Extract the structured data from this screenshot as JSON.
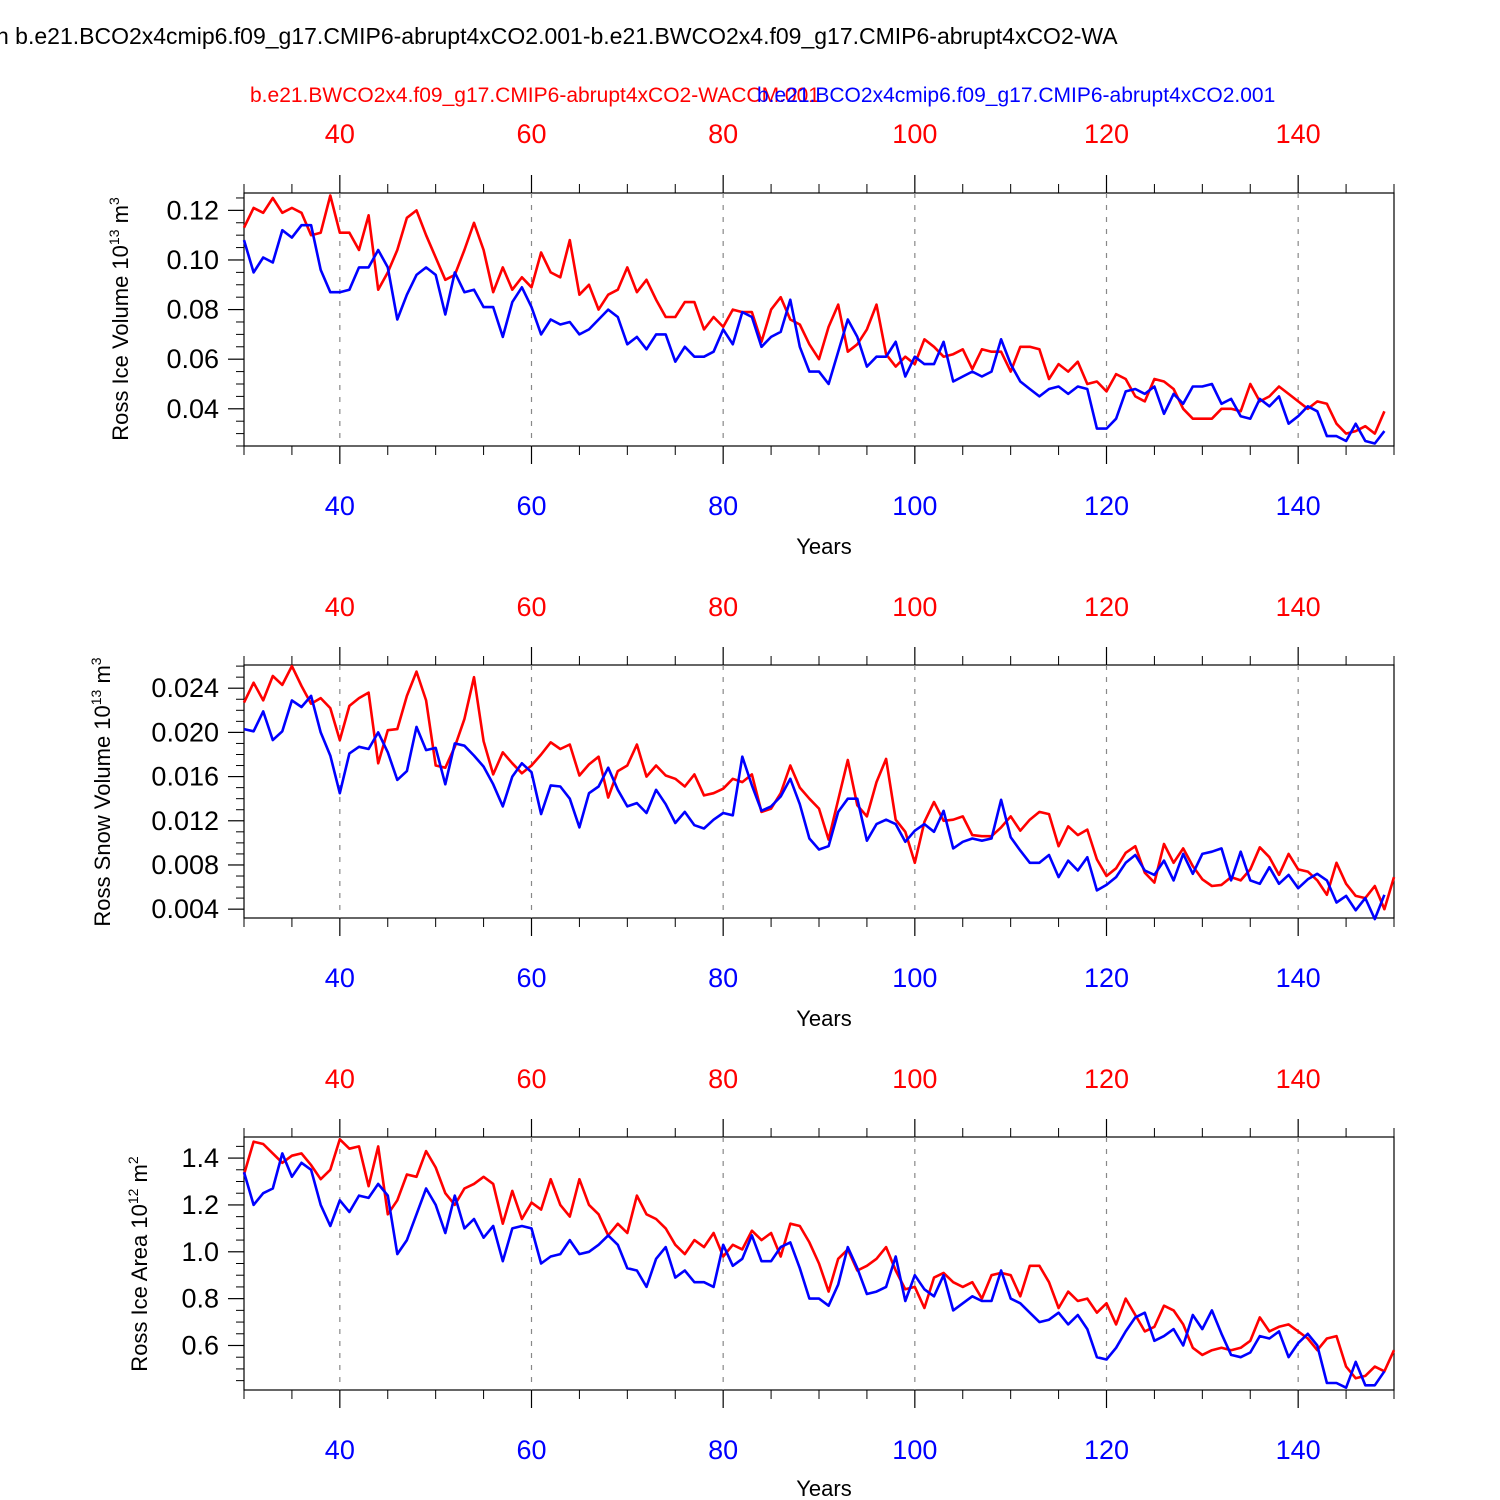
{
  "figure": {
    "title": "n b.e21.BCO2x4cmip6.f09_g17.CMIP6-abrupt4xCO2.001-b.e21.BWCO2x4.f09_g17.CMIP6-abrupt4xCO2-WA",
    "series_labels": {
      "red": "b.e21.BWCO2x4.f09_g17.CMIP6-abrupt4xCO2-WACCM.001",
      "blue": "b.e21.BCO2x4cmip6.f09_g17.CMIP6-abrupt4xCO2.001"
    },
    "colors": {
      "red": "#ff0000",
      "blue": "#0000ff",
      "grid": "#888888"
    }
  },
  "chart_data": [
    {
      "type": "line",
      "title": "",
      "ylabel_main": "Ross Ice Volume 10",
      "ylabel_exp": "13",
      "ylabel_unit": " m",
      "ylabel_unit_exp": "3",
      "xlabel": "Years",
      "xlim": [
        30,
        150
      ],
      "ylim": [
        0.025,
        0.127
      ],
      "xticks": [
        40,
        60,
        80,
        100,
        120,
        140
      ],
      "xtick_labels": [
        "40",
        "60",
        "80",
        "100",
        "120",
        "140"
      ],
      "yticks": [
        0.04,
        0.06,
        0.08,
        0.1,
        0.12
      ],
      "ytick_labels": [
        "0.04",
        "0.06",
        "0.08",
        "0.10",
        "0.12"
      ],
      "x_start": 30,
      "series": [
        {
          "name": "b.e21.BWCO2x4.f09_g17.CMIP6-abrupt4xCO2-WACCM.001",
          "color": "red",
          "values": [
            0.113,
            0.121,
            0.119,
            0.125,
            0.119,
            0.121,
            0.119,
            0.11,
            0.111,
            0.126,
            0.111,
            0.111,
            0.104,
            0.118,
            0.088,
            0.095,
            0.104,
            0.117,
            0.12,
            0.11,
            0.101,
            0.092,
            0.094,
            0.104,
            0.115,
            0.104,
            0.087,
            0.097,
            0.088,
            0.093,
            0.089,
            0.103,
            0.095,
            0.093,
            0.108,
            0.086,
            0.09,
            0.08,
            0.086,
            0.088,
            0.097,
            0.087,
            0.092,
            0.084,
            0.077,
            0.077,
            0.083,
            0.083,
            0.072,
            0.077,
            0.073,
            0.08,
            0.079,
            0.079,
            0.067,
            0.08,
            0.085,
            0.076,
            0.074,
            0.066,
            0.06,
            0.073,
            0.082,
            0.063,
            0.066,
            0.072,
            0.082,
            0.062,
            0.057,
            0.061,
            0.058,
            0.068,
            0.065,
            0.061,
            0.062,
            0.064,
            0.056,
            0.064,
            0.063,
            0.063,
            0.055,
            0.065,
            0.065,
            0.064,
            0.052,
            0.058,
            0.055,
            0.059,
            0.05,
            0.051,
            0.047,
            0.054,
            0.052,
            0.045,
            0.043,
            0.052,
            0.051,
            0.048,
            0.04,
            0.036,
            0.036,
            0.036,
            0.04,
            0.04,
            0.039,
            0.05,
            0.043,
            0.045,
            0.049,
            0.046,
            0.043,
            0.04,
            0.043,
            0.042,
            0.034,
            0.03,
            0.031,
            0.033,
            0.03,
            0.039
          ]
        },
        {
          "name": "b.e21.BCO2x4cmip6.f09_g17.CMIP6-abrupt4xCO2.001",
          "color": "blue",
          "values": [
            0.108,
            0.095,
            0.101,
            0.099,
            0.112,
            0.109,
            0.114,
            0.114,
            0.096,
            0.087,
            0.087,
            0.088,
            0.097,
            0.097,
            0.104,
            0.097,
            0.076,
            0.086,
            0.094,
            0.097,
            0.094,
            0.078,
            0.095,
            0.087,
            0.088,
            0.081,
            0.081,
            0.069,
            0.083,
            0.089,
            0.081,
            0.07,
            0.076,
            0.074,
            0.075,
            0.07,
            0.072,
            0.076,
            0.08,
            0.077,
            0.066,
            0.069,
            0.064,
            0.07,
            0.07,
            0.059,
            0.065,
            0.061,
            0.061,
            0.063,
            0.072,
            0.066,
            0.079,
            0.077,
            0.065,
            0.069,
            0.071,
            0.084,
            0.065,
            0.055,
            0.055,
            0.05,
            0.063,
            0.076,
            0.069,
            0.057,
            0.061,
            0.061,
            0.067,
            0.053,
            0.061,
            0.058,
            0.058,
            0.067,
            0.051,
            0.053,
            0.055,
            0.053,
            0.055,
            0.068,
            0.058,
            0.051,
            0.048,
            0.045,
            0.048,
            0.049,
            0.046,
            0.049,
            0.048,
            0.032,
            0.032,
            0.036,
            0.047,
            0.048,
            0.046,
            0.049,
            0.038,
            0.046,
            0.042,
            0.049,
            0.049,
            0.05,
            0.042,
            0.044,
            0.037,
            0.036,
            0.044,
            0.041,
            0.045,
            0.034,
            0.037,
            0.041,
            0.039,
            0.029,
            0.029,
            0.027,
            0.034,
            0.027,
            0.026,
            0.031
          ]
        }
      ]
    },
    {
      "type": "line",
      "title": "",
      "ylabel_main": "Ross Snow Volume 10",
      "ylabel_exp": "13",
      "ylabel_unit": " m",
      "ylabel_unit_exp": "3",
      "xlabel": "Years",
      "xlim": [
        30,
        150
      ],
      "ylim": [
        0.0032,
        0.0261
      ],
      "xticks": [
        40,
        60,
        80,
        100,
        120,
        140
      ],
      "xtick_labels": [
        "40",
        "60",
        "80",
        "100",
        "120",
        "140"
      ],
      "yticks": [
        0.004,
        0.008,
        0.012,
        0.016,
        0.02,
        0.024
      ],
      "ytick_labels": [
        "0.004",
        "0.008",
        "0.012",
        "0.016",
        "0.020",
        "0.024"
      ],
      "x_start": 30,
      "series": [
        {
          "name": "b.e21.BWCO2x4.f09_g17.CMIP6-abrupt4xCO2-WACCM.001",
          "color": "red",
          "values": [
            0.0227,
            0.0245,
            0.0229,
            0.0251,
            0.0243,
            0.026,
            0.0242,
            0.0226,
            0.0231,
            0.0222,
            0.0193,
            0.0224,
            0.0231,
            0.0236,
            0.0172,
            0.0202,
            0.0203,
            0.0233,
            0.0255,
            0.0229,
            0.017,
            0.0168,
            0.0187,
            0.0212,
            0.025,
            0.0192,
            0.0162,
            0.0182,
            0.0172,
            0.0163,
            0.017,
            0.018,
            0.0191,
            0.0185,
            0.0189,
            0.0161,
            0.0171,
            0.0178,
            0.0141,
            0.0165,
            0.017,
            0.0189,
            0.016,
            0.017,
            0.0161,
            0.0158,
            0.0151,
            0.0162,
            0.0143,
            0.0145,
            0.0149,
            0.0158,
            0.0155,
            0.0162,
            0.0128,
            0.0131,
            0.0145,
            0.017,
            0.015,
            0.014,
            0.0131,
            0.0103,
            0.0139,
            0.0175,
            0.0134,
            0.0124,
            0.0155,
            0.0176,
            0.0121,
            0.011,
            0.0082,
            0.0119,
            0.0137,
            0.012,
            0.0121,
            0.0124,
            0.0107,
            0.0106,
            0.0106,
            0.0114,
            0.0124,
            0.0111,
            0.0121,
            0.0128,
            0.0126,
            0.0097,
            0.0115,
            0.0107,
            0.0112,
            0.0085,
            0.007,
            0.0077,
            0.0091,
            0.0097,
            0.0073,
            0.0064,
            0.0099,
            0.0082,
            0.0095,
            0.0079,
            0.0067,
            0.0061,
            0.0062,
            0.0069,
            0.0066,
            0.0076,
            0.0096,
            0.0087,
            0.0071,
            0.009,
            0.0076,
            0.0074,
            0.0066,
            0.0053,
            0.0082,
            0.0063,
            0.0052,
            0.005,
            0.0061,
            0.004,
            0.0069
          ]
        },
        {
          "name": "b.e21.BCO2x4cmip6.f09_g17.CMIP6-abrupt4xCO2.001",
          "color": "blue",
          "values": [
            0.0203,
            0.0201,
            0.0219,
            0.0193,
            0.0201,
            0.0229,
            0.0223,
            0.0233,
            0.02,
            0.0179,
            0.0145,
            0.0181,
            0.0187,
            0.0185,
            0.02,
            0.0182,
            0.0157,
            0.0165,
            0.0205,
            0.0184,
            0.0186,
            0.0153,
            0.019,
            0.0188,
            0.0179,
            0.0169,
            0.0153,
            0.0133,
            0.016,
            0.0172,
            0.0164,
            0.0126,
            0.0152,
            0.0151,
            0.014,
            0.0114,
            0.0145,
            0.0151,
            0.0168,
            0.0148,
            0.0133,
            0.0136,
            0.0127,
            0.0148,
            0.0135,
            0.0118,
            0.0128,
            0.0116,
            0.0113,
            0.0121,
            0.0127,
            0.0125,
            0.0178,
            0.0152,
            0.0129,
            0.0133,
            0.0142,
            0.0158,
            0.0135,
            0.0104,
            0.0094,
            0.0097,
            0.0128,
            0.014,
            0.014,
            0.0102,
            0.0117,
            0.0121,
            0.0117,
            0.0101,
            0.0111,
            0.0117,
            0.011,
            0.0129,
            0.0095,
            0.0101,
            0.0104,
            0.0102,
            0.0104,
            0.0139,
            0.0105,
            0.0093,
            0.0082,
            0.0082,
            0.0089,
            0.0069,
            0.0084,
            0.0075,
            0.0087,
            0.0057,
            0.0062,
            0.0069,
            0.0082,
            0.0089,
            0.0075,
            0.0071,
            0.0084,
            0.0066,
            0.009,
            0.0072,
            0.009,
            0.0092,
            0.0095,
            0.0066,
            0.0092,
            0.0066,
            0.0063,
            0.0078,
            0.0063,
            0.0071,
            0.0059,
            0.0067,
            0.0072,
            0.0066,
            0.0046,
            0.0052,
            0.0039,
            0.005,
            0.0031,
            0.0053
          ]
        }
      ]
    },
    {
      "type": "line",
      "title": "",
      "ylabel_main": "Ross Ice Area 10",
      "ylabel_exp": "12",
      "ylabel_unit": " m",
      "ylabel_unit_exp": "2",
      "xlabel": "Years",
      "xlim": [
        30,
        150
      ],
      "ylim": [
        0.41,
        1.49
      ],
      "xticks": [
        40,
        60,
        80,
        100,
        120,
        140
      ],
      "xtick_labels": [
        "40",
        "60",
        "80",
        "100",
        "120",
        "140"
      ],
      "yticks": [
        0.6,
        0.8,
        1.0,
        1.2,
        1.4
      ],
      "ytick_labels": [
        "0.6",
        "0.8",
        "1.0",
        "1.2",
        "1.4"
      ],
      "x_start": 30,
      "series": [
        {
          "name": "b.e21.BWCO2x4.f09_g17.CMIP6-abrupt4xCO2-WACCM.001",
          "color": "red",
          "values": [
            1.33,
            1.47,
            1.46,
            1.42,
            1.38,
            1.41,
            1.42,
            1.37,
            1.31,
            1.35,
            1.48,
            1.44,
            1.45,
            1.28,
            1.45,
            1.16,
            1.22,
            1.33,
            1.32,
            1.43,
            1.36,
            1.25,
            1.2,
            1.27,
            1.29,
            1.32,
            1.29,
            1.12,
            1.26,
            1.14,
            1.21,
            1.18,
            1.31,
            1.2,
            1.15,
            1.31,
            1.2,
            1.16,
            1.07,
            1.12,
            1.08,
            1.24,
            1.16,
            1.14,
            1.1,
            1.03,
            0.99,
            1.05,
            1.02,
            1.08,
            0.98,
            1.03,
            1.01,
            1.09,
            1.05,
            1.08,
            0.98,
            1.12,
            1.11,
            1.04,
            0.95,
            0.83,
            0.97,
            1.01,
            0.92,
            0.94,
            0.97,
            1.02,
            0.92,
            0.84,
            0.85,
            0.76,
            0.89,
            0.91,
            0.87,
            0.85,
            0.87,
            0.8,
            0.9,
            0.91,
            0.9,
            0.81,
            0.94,
            0.94,
            0.87,
            0.76,
            0.83,
            0.79,
            0.8,
            0.74,
            0.78,
            0.69,
            0.8,
            0.73,
            0.66,
            0.68,
            0.77,
            0.75,
            0.69,
            0.59,
            0.56,
            0.58,
            0.59,
            0.58,
            0.59,
            0.62,
            0.72,
            0.66,
            0.68,
            0.69,
            0.66,
            0.63,
            0.58,
            0.63,
            0.64,
            0.51,
            0.46,
            0.47,
            0.51,
            0.49,
            0.58
          ]
        },
        {
          "name": "b.e21.BCO2x4cmip6.f09_g17.CMIP6-abrupt4xCO2.001",
          "color": "blue",
          "values": [
            1.34,
            1.2,
            1.25,
            1.27,
            1.42,
            1.32,
            1.38,
            1.35,
            1.2,
            1.11,
            1.22,
            1.17,
            1.24,
            1.23,
            1.29,
            1.24,
            0.99,
            1.05,
            1.16,
            1.27,
            1.2,
            1.08,
            1.24,
            1.1,
            1.14,
            1.06,
            1.11,
            0.96,
            1.1,
            1.11,
            1.1,
            0.95,
            0.98,
            0.99,
            1.05,
            0.99,
            1.0,
            1.03,
            1.07,
            1.03,
            0.93,
            0.92,
            0.85,
            0.97,
            1.02,
            0.89,
            0.92,
            0.87,
            0.87,
            0.85,
            1.03,
            0.94,
            0.97,
            1.07,
            0.96,
            0.96,
            1.02,
            1.04,
            0.93,
            0.8,
            0.8,
            0.77,
            0.86,
            1.02,
            0.93,
            0.82,
            0.83,
            0.85,
            0.98,
            0.79,
            0.9,
            0.84,
            0.81,
            0.9,
            0.75,
            0.78,
            0.81,
            0.79,
            0.79,
            0.92,
            0.8,
            0.78,
            0.74,
            0.7,
            0.71,
            0.74,
            0.69,
            0.73,
            0.67,
            0.55,
            0.54,
            0.59,
            0.66,
            0.72,
            0.74,
            0.62,
            0.64,
            0.67,
            0.6,
            0.73,
            0.67,
            0.75,
            0.65,
            0.56,
            0.55,
            0.57,
            0.64,
            0.63,
            0.66,
            0.55,
            0.61,
            0.65,
            0.6,
            0.44,
            0.44,
            0.42,
            0.53,
            0.43,
            0.43,
            0.49
          ]
        }
      ]
    }
  ]
}
